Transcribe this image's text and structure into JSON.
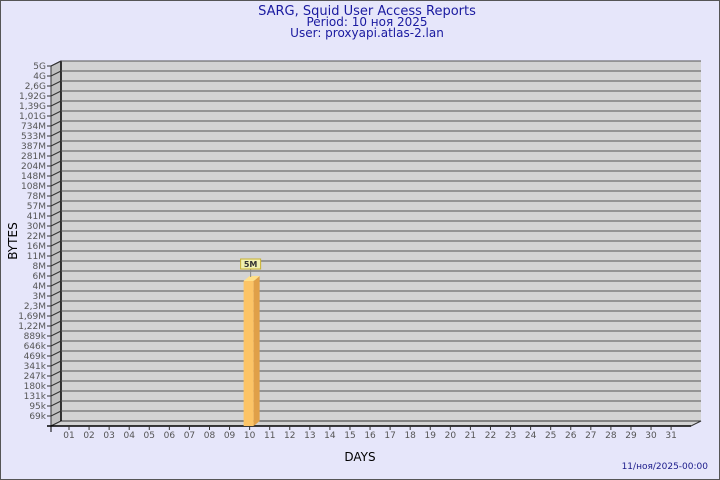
{
  "chart_data": {
    "type": "bar",
    "title": "SARG, Squid User Access Reports",
    "subtitle": [
      "Period: 10 ноя 2025",
      "User: proxyapi.atlas-2.lan"
    ],
    "xlabel": "DAYS",
    "ylabel": "BYTES",
    "y_scale": "log-like (non-linear tick labels)",
    "y_ticks": [
      "5G",
      "4G",
      "2,6G",
      "1,92G",
      "1,39G",
      "1,01G",
      "734M",
      "533M",
      "387M",
      "281M",
      "204M",
      "148M",
      "108M",
      "78M",
      "57M",
      "41M",
      "30M",
      "22M",
      "16M",
      "11M",
      "8M",
      "6M",
      "4M",
      "3M",
      "2,3M",
      "1,69M",
      "1,22M",
      "889k",
      "646k",
      "469k",
      "341k",
      "247k",
      "180k",
      "131k",
      "95k",
      "69k"
    ],
    "categories": [
      "01",
      "02",
      "03",
      "04",
      "05",
      "06",
      "07",
      "08",
      "09",
      "10",
      "11",
      "12",
      "13",
      "14",
      "15",
      "16",
      "17",
      "18",
      "19",
      "20",
      "21",
      "22",
      "23",
      "24",
      "25",
      "26",
      "27",
      "28",
      "29",
      "30",
      "31"
    ],
    "bars": [
      {
        "day": "10",
        "value": "5M",
        "label": "5M"
      }
    ],
    "grid": true,
    "bar_color": "#fcc466",
    "plot_bg": "#d3d3d3"
  },
  "footer": {
    "timestamp": "11/ноя/2025-00:00"
  }
}
